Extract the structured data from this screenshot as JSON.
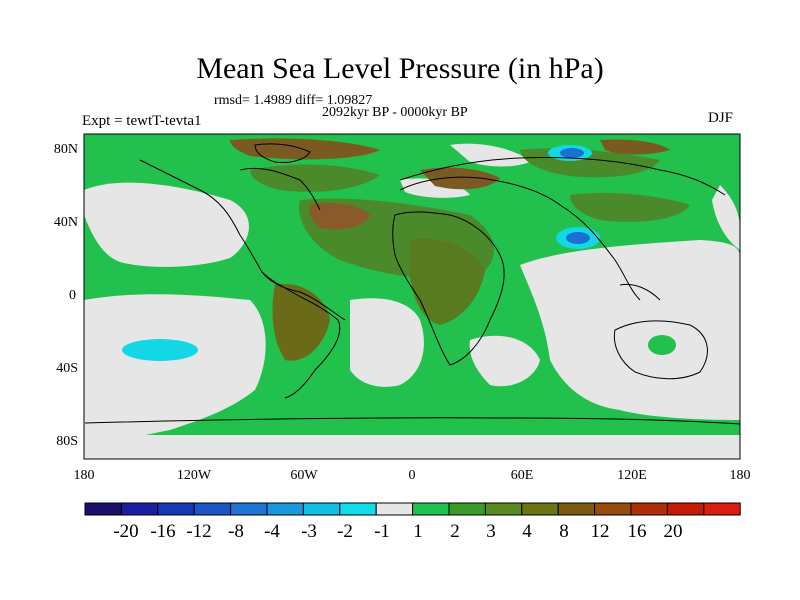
{
  "title": "Mean Sea Level Pressure (in hPa)",
  "stats": "rmsd= 1.4989 diff= 1.09827",
  "period": "2092kyr BP - 0000kyr BP",
  "experiment": "Expt = tewtT-tevta1",
  "season": "DJF",
  "lat_labels": [
    "80N",
    "40N",
    "0",
    "40S",
    "80S"
  ],
  "lon_labels": [
    "180",
    "120W",
    "60W",
    "0",
    "60E",
    "120E",
    "180"
  ],
  "colorbar": {
    "colors": [
      "#1a0f6b",
      "#1b1ea0",
      "#1638b4",
      "#1a56c4",
      "#1f76d2",
      "#1a98dc",
      "#12bde6",
      "#10dcea",
      "#e6e6e6",
      "#22c04c",
      "#3a9a2c",
      "#5a8a22",
      "#6b7414",
      "#7a5a0e",
      "#964c0a",
      "#ad2e08",
      "#c41a06",
      "#dd1c10"
    ],
    "labels": [
      "-20",
      "-16",
      "-12",
      "-8",
      "-4",
      "-3",
      "-2",
      "-1",
      "1",
      "2",
      "3",
      "4",
      "8",
      "12",
      "16",
      "20"
    ]
  },
  "map_colors": {
    "ocean_gray": "#e6e6e6",
    "green": "#22c04c",
    "dark_green": "#4a8a2a",
    "brown": "#8a5a2a",
    "cyan": "#12d8e6",
    "blue": "#1a70d0"
  }
}
